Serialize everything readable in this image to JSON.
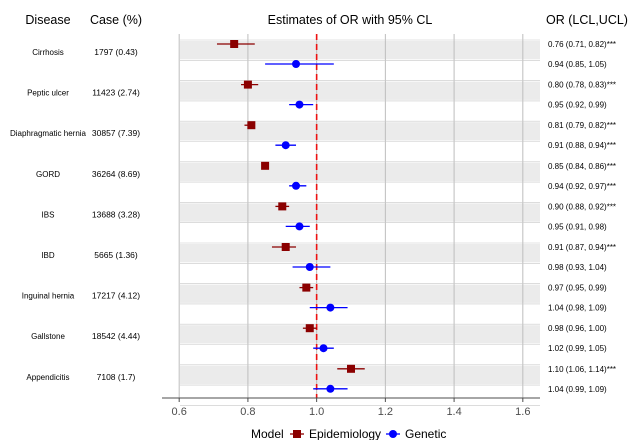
{
  "chart_data": {
    "type": "forest",
    "title": "Estimates of OR with 95% CL",
    "column_headers": {
      "disease": "Disease",
      "case": "Case (%)",
      "or": "OR (LCL,UCL)"
    },
    "xlim": [
      0.55,
      1.65
    ],
    "x_ticks": [
      "0.6",
      "0.8",
      "1.0",
      "1.2",
      "1.4",
      "1.6"
    ],
    "x_tick_values": [
      0.6,
      0.8,
      1.0,
      1.2,
      1.4,
      1.6
    ],
    "reference_line": 1.0,
    "grid": true,
    "legend": {
      "title": "Model",
      "placement": "bottom",
      "entries": [
        {
          "label": "Epidemiology",
          "color": "#8b0000",
          "shape": "square"
        },
        {
          "label": "Genetic",
          "color": "#0000ff",
          "shape": "circle"
        }
      ]
    },
    "rows": [
      {
        "disease": "Cirrhosis",
        "case": "1797 (0.43)",
        "epi": {
          "or": 0.76,
          "lcl": 0.71,
          "ucl": 0.82,
          "label": "0.76 (0.71, 0.82)***"
        },
        "gen": {
          "or": 0.94,
          "lcl": 0.85,
          "ucl": 1.05,
          "label": "0.94 (0.85, 1.05)"
        }
      },
      {
        "disease": "Peptic ulcer",
        "case": "11423 (2.74)",
        "epi": {
          "or": 0.8,
          "lcl": 0.78,
          "ucl": 0.83,
          "label": "0.80 (0.78, 0.83)***"
        },
        "gen": {
          "or": 0.95,
          "lcl": 0.92,
          "ucl": 0.99,
          "label": "0.95 (0.92, 0.99)"
        }
      },
      {
        "disease": "Diaphragmatic hernia",
        "case": "30857 (7.39)",
        "epi": {
          "or": 0.81,
          "lcl": 0.79,
          "ucl": 0.82,
          "label": "0.81 (0.79, 0.82)***"
        },
        "gen": {
          "or": 0.91,
          "lcl": 0.88,
          "ucl": 0.94,
          "label": "0.91 (0.88, 0.94)***"
        }
      },
      {
        "disease": "GORD",
        "case": "36264 (8.69)",
        "epi": {
          "or": 0.85,
          "lcl": 0.84,
          "ucl": 0.86,
          "label": "0.85 (0.84, 0.86)***"
        },
        "gen": {
          "or": 0.94,
          "lcl": 0.92,
          "ucl": 0.97,
          "label": "0.94 (0.92, 0.97)***"
        }
      },
      {
        "disease": "IBS",
        "case": "13688 (3.28)",
        "epi": {
          "or": 0.9,
          "lcl": 0.88,
          "ucl": 0.92,
          "label": "0.90 (0.88, 0.92)***"
        },
        "gen": {
          "or": 0.95,
          "lcl": 0.91,
          "ucl": 0.98,
          "label": "0.95 (0.91, 0.98)"
        }
      },
      {
        "disease": "IBD",
        "case": "5665 (1.36)",
        "epi": {
          "or": 0.91,
          "lcl": 0.87,
          "ucl": 0.94,
          "label": "0.91 (0.87, 0.94)***"
        },
        "gen": {
          "or": 0.98,
          "lcl": 0.93,
          "ucl": 1.04,
          "label": "0.98 (0.93, 1.04)"
        }
      },
      {
        "disease": "Inguinal hernia",
        "case": "17217 (4.12)",
        "epi": {
          "or": 0.97,
          "lcl": 0.95,
          "ucl": 0.99,
          "label": "0.97 (0.95, 0.99)"
        },
        "gen": {
          "or": 1.04,
          "lcl": 0.98,
          "ucl": 1.09,
          "label": "1.04 (0.98, 1.09)"
        }
      },
      {
        "disease": "Gallstone",
        "case": "18542 (4.44)",
        "epi": {
          "or": 0.98,
          "lcl": 0.96,
          "ucl": 1.0,
          "label": "0.98 (0.96, 1.00)"
        },
        "gen": {
          "or": 1.02,
          "lcl": 0.99,
          "ucl": 1.05,
          "label": "1.02 (0.99, 1.05)"
        }
      },
      {
        "disease": "Appendicitis",
        "case": "7108 (1.7)",
        "epi": {
          "or": 1.1,
          "lcl": 1.06,
          "ucl": 1.14,
          "label": "1.10 (1.06, 1.14)***"
        },
        "gen": {
          "or": 1.04,
          "lcl": 0.99,
          "ucl": 1.09,
          "label": "1.04 (0.99, 1.09)"
        }
      }
    ]
  }
}
